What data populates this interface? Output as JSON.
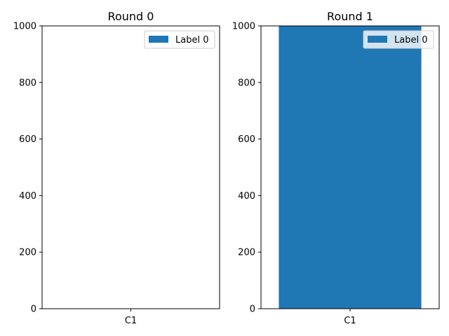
{
  "chart_data": [
    {
      "type": "bar",
      "title": "Round 0",
      "categories": [
        "C1"
      ],
      "series": [
        {
          "name": "Label 0",
          "values": [
            0
          ],
          "color": "#1f77b4"
        }
      ],
      "ylim": [
        0,
        1000
      ],
      "yticks": [
        0,
        200,
        400,
        600,
        800,
        1000
      ],
      "xlabel": "",
      "ylabel": "",
      "grid": false,
      "legend": "top-right"
    },
    {
      "type": "bar",
      "title": "Round 1",
      "categories": [
        "C1"
      ],
      "series": [
        {
          "name": "Label 0",
          "values": [
            1000
          ],
          "color": "#1f77b4"
        }
      ],
      "ylim": [
        0,
        1000
      ],
      "yticks": [
        0,
        200,
        400,
        600,
        800,
        1000
      ],
      "xlabel": "",
      "ylabel": "",
      "grid": false,
      "legend": "top-right"
    }
  ]
}
